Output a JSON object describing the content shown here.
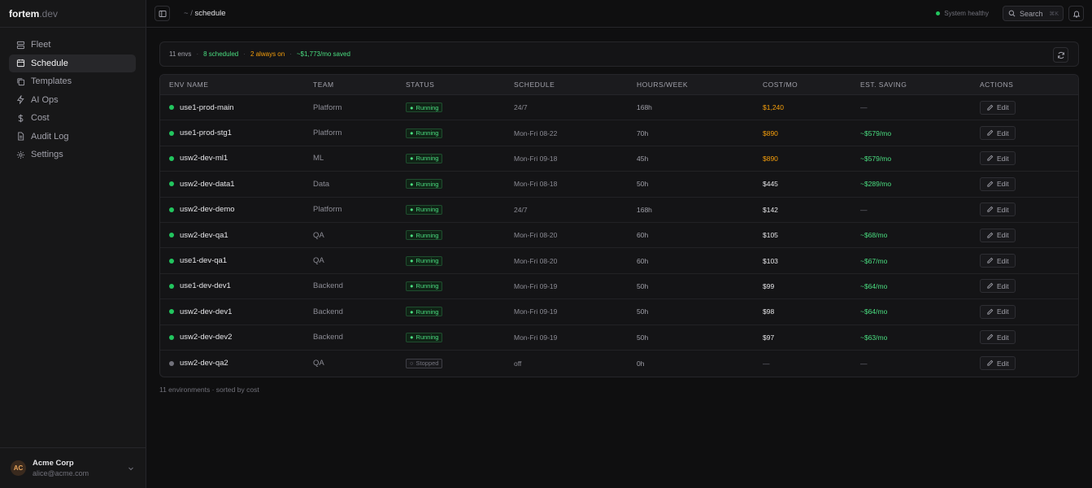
{
  "brand": {
    "name": "fortem",
    "tld": ".dev"
  },
  "sidebar": {
    "items": [
      {
        "label": "Fleet",
        "icon": "server-icon",
        "active": false
      },
      {
        "label": "Schedule",
        "icon": "calendar-icon",
        "active": true
      },
      {
        "label": "Templates",
        "icon": "copy-icon",
        "active": false
      },
      {
        "label": "AI Ops",
        "icon": "bolt-icon",
        "active": false
      },
      {
        "label": "Cost",
        "icon": "dollar-icon",
        "active": false
      },
      {
        "label": "Audit Log",
        "icon": "file-icon",
        "active": false
      },
      {
        "label": "Settings",
        "icon": "gear-icon",
        "active": false
      }
    ],
    "account": {
      "initials": "AC",
      "name": "Acme Corp",
      "email": "alice@acme.com"
    }
  },
  "topbar": {
    "crumb_root": "~",
    "crumb_sep": "/",
    "crumb_current": "schedule",
    "status_text": "System healthy",
    "search_label": "Search",
    "search_kbd": "⌘K"
  },
  "summary": {
    "envs": "11 envs",
    "scheduled": "8 scheduled",
    "always_on": "2 always on",
    "saved": "~$1,773/mo saved",
    "sep": "·"
  },
  "table": {
    "headers": [
      "ENV NAME",
      "TEAM",
      "STATUS",
      "SCHEDULE",
      "HOURS/WEEK",
      "COST/MO",
      "EST. SAVING",
      "ACTIONS"
    ],
    "edit_label": "Edit",
    "rows": [
      {
        "name": "use1-prod-main",
        "team": "Platform",
        "status": "Running",
        "schedule": "24/7",
        "hours": "168h",
        "cost": "$1,240",
        "saving": "—"
      },
      {
        "name": "use1-prod-stg1",
        "team": "Platform",
        "status": "Running",
        "schedule": "Mon-Fri 08-22",
        "hours": "70h",
        "cost": "$890",
        "saving": "~$579/mo"
      },
      {
        "name": "usw2-dev-ml1",
        "team": "ML",
        "status": "Running",
        "schedule": "Mon-Fri 09-18",
        "hours": "45h",
        "cost": "$890",
        "saving": "~$579/mo"
      },
      {
        "name": "usw2-dev-data1",
        "team": "Data",
        "status": "Running",
        "schedule": "Mon-Fri 08-18",
        "hours": "50h",
        "cost": "$445",
        "saving": "~$289/mo"
      },
      {
        "name": "usw2-dev-demo",
        "team": "Platform",
        "status": "Running",
        "schedule": "24/7",
        "hours": "168h",
        "cost": "$142",
        "saving": "—"
      },
      {
        "name": "usw2-dev-qa1",
        "team": "QA",
        "status": "Running",
        "schedule": "Mon-Fri 08-20",
        "hours": "60h",
        "cost": "$105",
        "saving": "~$68/mo"
      },
      {
        "name": "use1-dev-qa1",
        "team": "QA",
        "status": "Running",
        "schedule": "Mon-Fri 08-20",
        "hours": "60h",
        "cost": "$103",
        "saving": "~$67/mo"
      },
      {
        "name": "use1-dev-dev1",
        "team": "Backend",
        "status": "Running",
        "schedule": "Mon-Fri 09-19",
        "hours": "50h",
        "cost": "$99",
        "saving": "~$64/mo"
      },
      {
        "name": "usw2-dev-dev1",
        "team": "Backend",
        "status": "Running",
        "schedule": "Mon-Fri 09-19",
        "hours": "50h",
        "cost": "$98",
        "saving": "~$64/mo"
      },
      {
        "name": "usw2-dev-dev2",
        "team": "Backend",
        "status": "Running",
        "schedule": "Mon-Fri 09-19",
        "hours": "50h",
        "cost": "$97",
        "saving": "~$63/mo"
      },
      {
        "name": "usw2-dev-qa2",
        "team": "QA",
        "status": "Stopped",
        "schedule": "off",
        "hours": "0h",
        "cost": "—",
        "saving": "—"
      }
    ]
  },
  "footnote": "11 environments · sorted by cost",
  "colors": {
    "accent_green": "#22c55e",
    "warning_amber": "#f59e0b"
  }
}
